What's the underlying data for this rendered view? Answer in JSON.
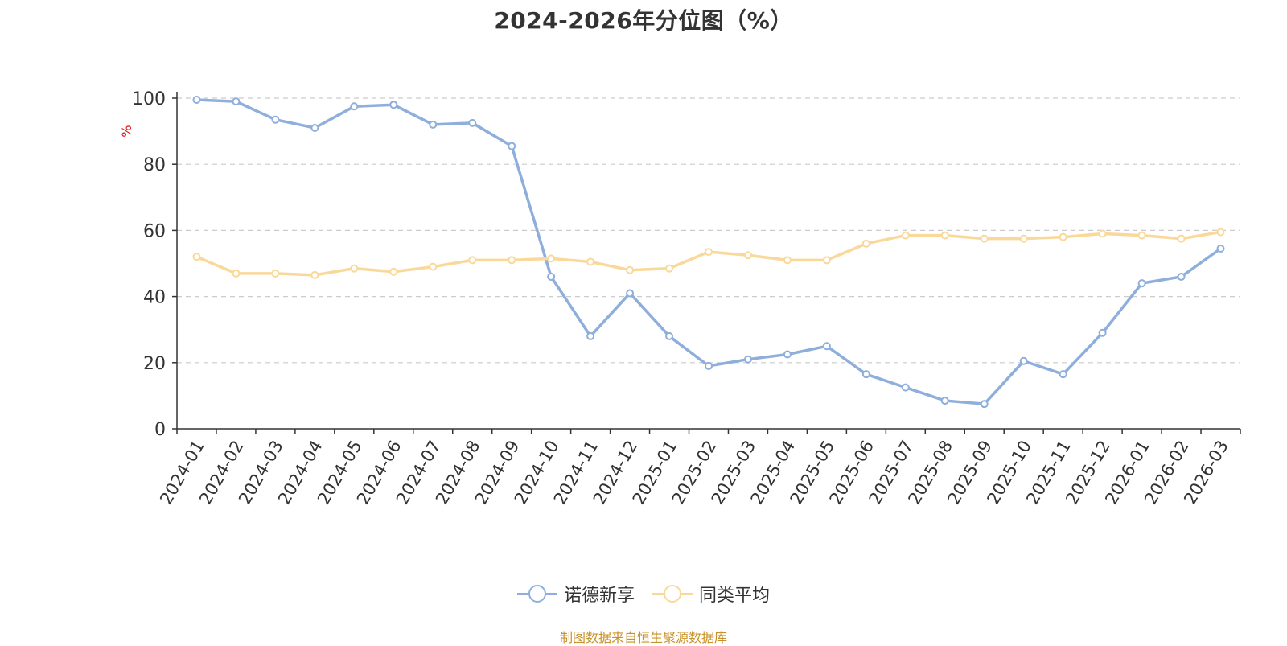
{
  "chart_data": {
    "type": "line",
    "title": "2024-2026年分位图（%）",
    "ylabel": "%",
    "ylim": [
      0,
      100
    ],
    "yticks": [
      0,
      20,
      40,
      60,
      80,
      100
    ],
    "grid": true,
    "legend_position": "bottom-center",
    "categories": [
      "2024-01",
      "2024-02",
      "2024-03",
      "2024-04",
      "2024-05",
      "2024-06",
      "2024-07",
      "2024-08",
      "2024-09",
      "2024-10",
      "2024-11",
      "2024-12",
      "2025-01",
      "2025-02",
      "2025-03",
      "2025-04",
      "2025-05",
      "2025-06",
      "2025-07",
      "2025-08",
      "2025-09",
      "2025-10",
      "2025-11",
      "2025-12",
      "2026-01",
      "2026-02",
      "2026-03"
    ],
    "series": [
      {
        "name": "诺德新享",
        "color": "#8eaedb",
        "values": [
          99.5,
          99.0,
          93.5,
          91.0,
          97.5,
          98.0,
          92.0,
          92.5,
          85.5,
          46.0,
          28.0,
          41.0,
          28.0,
          19.0,
          21.0,
          22.5,
          25.0,
          16.5,
          12.5,
          8.5,
          7.5,
          20.5,
          16.5,
          29.0,
          44.0,
          46.0,
          54.5
        ]
      },
      {
        "name": "同类平均",
        "color": "#fad899",
        "values": [
          52.0,
          47.0,
          47.0,
          46.5,
          48.5,
          47.5,
          49.0,
          51.0,
          51.0,
          51.5,
          50.5,
          48.0,
          48.5,
          53.5,
          52.5,
          51.0,
          51.0,
          56.0,
          58.5,
          58.5,
          57.5,
          57.5,
          58.0,
          59.0,
          58.5,
          57.5,
          59.5
        ]
      }
    ]
  },
  "source_note": "制图数据来自恒生聚源数据库"
}
